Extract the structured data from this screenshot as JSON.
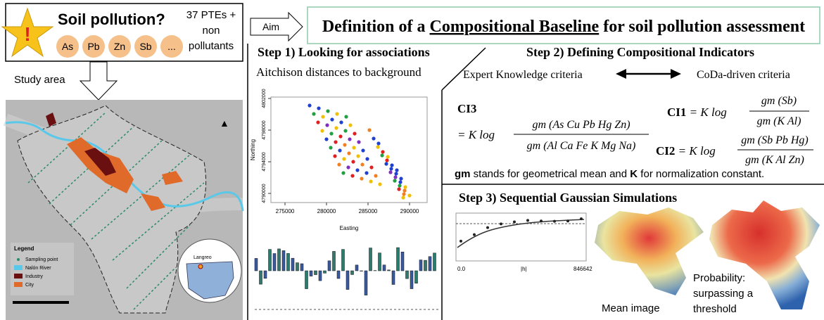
{
  "problem": {
    "title": "Soil pollution?",
    "elements": [
      "As",
      "Pb",
      "Zn",
      "Sb",
      "..."
    ],
    "note": [
      "37 PTEs +",
      "non",
      "pollutants"
    ]
  },
  "aim": {
    "label": "Aim",
    "title_parts": [
      "Definition of a ",
      "Compositional Baseline",
      " for soil pollution assessment"
    ]
  },
  "study_area": {
    "label": "Study area",
    "legend_title": "Legend",
    "legend": [
      "Sampling point",
      "Nalón River",
      "Industry",
      "City"
    ],
    "inset_label": "Langreo"
  },
  "step1": {
    "title": "Step 1) Looking for associations",
    "subtitle": "Aitchison distances to background",
    "scatter": {
      "xlabel": "Easting",
      "ylabel": "Northing",
      "xticks": [
        "275000",
        "280000",
        "285000",
        "290000"
      ],
      "yticks": [
        "4790000",
        "4794000",
        "4798000",
        "4802000"
      ]
    }
  },
  "step2": {
    "title": "Step 2) Defining Compositional Indicators",
    "left": "Expert Knowledge criteria",
    "right": "CoDa-driven criteria",
    "formulas": [
      {
        "name": "CI3",
        "prefix": "= K log",
        "numerator": "gm (As Cu Pb Hg Zn)",
        "denominator": "gm (Al Ca Fe K Mg Na)"
      },
      {
        "name": "CI1",
        "prefix": " = K log",
        "numerator": "gm (Sb)",
        "denominator": "gm (K Al)"
      },
      {
        "name": "CI2",
        "prefix": " = K log",
        "numerator": "gm (Sb Pb Hg)",
        "denominator": "gm (K Al Zn)"
      }
    ],
    "note_parts": [
      "gm",
      " stands for geometrical mean and ",
      "K",
      " for normalization constant."
    ]
  },
  "step3": {
    "title": "Step 3) Sequential Gaussian Simulations",
    "variogram_labels": [
      "0.0",
      "|h|",
      "846642"
    ],
    "mean_label": "Mean image",
    "prob_label": [
      "Probability:",
      "surpassing a",
      "threshold"
    ]
  }
}
